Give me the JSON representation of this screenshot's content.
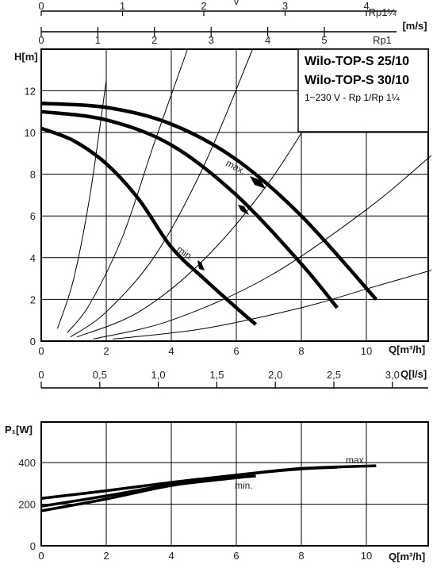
{
  "chart_data": [
    {
      "type": "line",
      "ylabel": "H[m]",
      "xlabel": "Q[m³/h]",
      "xlim": [
        0,
        12
      ],
      "ylim": [
        0,
        14
      ],
      "x_ticks": [
        "0",
        "2",
        "4",
        "6",
        "8",
        "10"
      ],
      "y_ticks": [
        "0",
        "2",
        "4",
        "6",
        "8",
        "10",
        "12"
      ],
      "legend": {
        "title_1": "Wilo-TOP-S 25/10",
        "title_2": "Wilo-TOP-S 30/10",
        "subtitle": "1~230 V - Rp 1/Rp 1¼"
      },
      "top_axis_v_label": "v",
      "top_axis_v_rp114": [
        "0",
        "1",
        "2",
        "3",
        "4"
      ],
      "top_axis_v_rp114_name": "Rp1¼",
      "top_axis_v_rp1": [
        "0",
        "1",
        "2",
        "3",
        "4",
        "5"
      ],
      "top_axis_v_rp1_name": "Rp1",
      "top_axis_unit": "[m/s]",
      "bottom_axis_ls": [
        "0",
        "0,5",
        "1,0",
        "1,5",
        "2,0",
        "2,5",
        "3,0"
      ],
      "bottom_axis_ls_unit": "Q[l/s]",
      "series": [
        {
          "name": "max.",
          "x": [
            0,
            2,
            4,
            6,
            8,
            10.3
          ],
          "y": [
            11.4,
            11.2,
            10.4,
            8.7,
            6.0,
            2.0
          ]
        },
        {
          "x": [
            0,
            2,
            4,
            6,
            8,
            9.1
          ],
          "y": [
            11.0,
            10.6,
            9.4,
            7.0,
            3.7,
            1.6
          ]
        },
        {
          "name": "min.",
          "x": [
            0,
            1,
            2,
            3,
            4,
            5,
            6,
            6.6
          ],
          "y": [
            10.2,
            9.6,
            8.5,
            6.8,
            4.5,
            3.0,
            1.6,
            0.8
          ]
        }
      ],
      "system_curves": [
        {
          "x": [
            0.5,
            1.0,
            1.5,
            2.0
          ],
          "y": [
            0.6,
            3.0,
            7.0,
            12.5
          ]
        },
        {
          "x": [
            0.8,
            1.5,
            2.5,
            3.5,
            4.5
          ],
          "y": [
            0.4,
            1.8,
            5.0,
            9.6,
            14
          ]
        },
        {
          "x": [
            0.9,
            2.0,
            3.5,
            5.0,
            6.5
          ],
          "y": [
            0.2,
            1.4,
            4.1,
            8.4,
            14
          ]
        },
        {
          "x": [
            1.1,
            3.0,
            5.0,
            7.0,
            8.8
          ],
          "y": [
            0.2,
            1.4,
            3.9,
            7.6,
            12.0
          ]
        },
        {
          "x": [
            1.6,
            4.0,
            7.0,
            10.0,
            12.0
          ],
          "y": [
            0.1,
            1.0,
            3.1,
            6.3,
            8.9
          ]
        },
        {
          "x": [
            2.2,
            5.0,
            8.0,
            10.0,
            12.0
          ],
          "y": [
            0.1,
            0.6,
            1.6,
            2.5,
            3.4
          ]
        }
      ]
    },
    {
      "type": "line",
      "ylabel": "P₁[W]",
      "xlabel": "Q[m³/h]",
      "xlim": [
        0,
        12
      ],
      "ylim": [
        0,
        600
      ],
      "x_ticks": [
        "0",
        "2",
        "4",
        "6",
        "8",
        "10"
      ],
      "y_ticks": [
        "0",
        "200",
        "400"
      ],
      "series": [
        {
          "name": "max.",
          "x": [
            0,
            2,
            4,
            6,
            8,
            10.3
          ],
          "y": [
            228,
            265,
            305,
            340,
            372,
            385
          ]
        },
        {
          "x": [
            0,
            2,
            4,
            6,
            8,
            9.1
          ],
          "y": [
            190,
            240,
            295,
            340,
            370,
            378
          ]
        },
        {
          "name": "min.",
          "x": [
            0,
            2,
            4,
            6,
            6.6
          ],
          "y": [
            168,
            225,
            290,
            327,
            336
          ]
        }
      ]
    }
  ]
}
